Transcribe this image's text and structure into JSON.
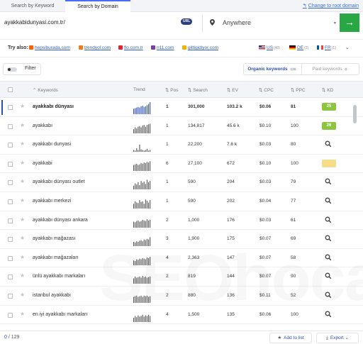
{
  "tabs": {
    "search_by_keyword": "Search by Keyword",
    "search_by_domain": "Search by Domain",
    "change_link": "Change to root domain"
  },
  "search": {
    "domain_value": "ayakkabidunyasi.com.tr/",
    "url_badge": "URL",
    "location_value": "Anywhere",
    "go_label": "→"
  },
  "try_also": {
    "label": "Try also:",
    "sites": [
      {
        "name": "hepsiburada.com",
        "color": "#ff6000"
      },
      {
        "name": "trendyol.com",
        "color": "#f27a1a"
      },
      {
        "name": "flo.com.tr",
        "color": "#e3262d"
      },
      {
        "name": "n11.com",
        "color": "#7b3fa0"
      },
      {
        "name": "gittigidiyor.com",
        "color": "#f2b400"
      }
    ],
    "countries": [
      {
        "code": "US",
        "count": "(40)"
      },
      {
        "code": "DE",
        "count": "(2)"
      },
      {
        "code": "FR",
        "count": "(1)"
      }
    ]
  },
  "filter": {
    "label": "Filter",
    "organic_label": "Organic keywords",
    "organic_count": "129",
    "paid_label": "Paid keywords",
    "paid_count": "0"
  },
  "table": {
    "headers": {
      "keywords": "Keywords",
      "trend": "Trend",
      "pos": "Pos",
      "search": "Search",
      "ev": "EV",
      "cpc": "CPC",
      "ppc": "PPC",
      "kd": "KD"
    },
    "rows": [
      {
        "keyword": "ayakkabı dünyası",
        "pos": "1",
        "search": "301,000",
        "ev": "103.2 k",
        "cpc": "$0.06",
        "ppc": "81",
        "kd": "25",
        "kd_color": "#8cc63f",
        "bold": true,
        "trend": [
          0.45,
          0.5,
          0.55,
          0.6,
          0.55,
          0.65,
          0.7,
          0.6,
          0.65,
          0.75,
          0.85,
          1.0
        ]
      },
      {
        "keyword": "ayakkabı",
        "pos": "1",
        "search": "134,817",
        "ev": "45.6 k",
        "cpc": "$0.10",
        "ppc": "100",
        "kd": "26",
        "kd_color": "#8cc63f",
        "trend": [
          0.35,
          0.5,
          0.4,
          0.55,
          0.6,
          0.5,
          0.65,
          0.7,
          0.55,
          0.7,
          0.75,
          0.8
        ]
      },
      {
        "keyword": "ayakkabı dunyasi",
        "pos": "1",
        "search": "22,200",
        "ev": "7.6 k",
        "cpc": "$0.03",
        "ppc": "80",
        "kd": "",
        "trend": [
          0.15,
          0.1,
          0.3,
          0.15,
          0.6,
          0.2,
          0.15,
          0.1,
          0.15,
          0.25,
          0.1,
          0.15
        ]
      },
      {
        "keyword": "ayakkabi",
        "pos": "6",
        "search": "27,100",
        "ev": "672",
        "cpc": "$0.10",
        "ppc": "100",
        "kd": " ",
        "kd_color": "#f7dc8a",
        "trend": [
          0.5,
          0.55,
          0.6,
          0.5,
          0.55,
          0.65,
          0.6,
          0.7,
          0.65,
          0.75,
          0.7,
          0.8
        ]
      },
      {
        "keyword": "ayakkabı dünyası outlet",
        "pos": "1",
        "search": "590",
        "ev": "204",
        "cpc": "$0.03",
        "ppc": "79",
        "kd": "",
        "trend": [
          0.3,
          0.5,
          0.4,
          0.6,
          0.35,
          0.7,
          0.55,
          0.65,
          0.45,
          0.8,
          0.6,
          0.7
        ]
      },
      {
        "keyword": "ayakkabı merkezi",
        "pos": "1",
        "search": "590",
        "ev": "202",
        "cpc": "$0.04",
        "ppc": "77",
        "kd": "",
        "trend": [
          0.4,
          0.6,
          0.5,
          0.45,
          0.7,
          0.55,
          0.6,
          0.4,
          0.75,
          0.65,
          0.5,
          0.7
        ]
      },
      {
        "keyword": "ayakkabı dünyası ankara",
        "pos": "2",
        "search": "1,000",
        "ev": "176",
        "cpc": "$0.03",
        "ppc": "61",
        "kd": "",
        "trend": [
          0.5,
          0.45,
          0.55,
          0.6,
          0.5,
          0.55,
          0.65,
          0.6,
          0.55,
          0.7,
          0.6,
          0.65
        ]
      },
      {
        "keyword": "ayakkabı mağazası",
        "pos": "3",
        "search": "1,900",
        "ev": "175",
        "cpc": "$0.07",
        "ppc": "69",
        "kd": "",
        "trend": [
          0.35,
          0.3,
          0.4,
          0.35,
          0.45,
          0.5,
          0.4,
          0.55,
          0.5,
          0.6,
          0.55,
          0.75
        ]
      },
      {
        "keyword": "ayakkabı mağazaları",
        "pos": "4",
        "search": "2,363",
        "ev": "147",
        "cpc": "$0.07",
        "ppc": "58",
        "kd": "",
        "trend": [
          0.4,
          0.35,
          0.5,
          0.45,
          0.55,
          0.5,
          0.6,
          0.55,
          0.5,
          0.65,
          0.6,
          0.7
        ]
      },
      {
        "keyword": "ünlü ayakkabı markaları",
        "pos": "2",
        "search": "819",
        "ev": "144",
        "cpc": "$0.07",
        "ppc": "90",
        "kd": "",
        "trend": [
          0.45,
          0.6,
          0.5,
          0.55,
          0.6,
          0.5,
          0.65,
          0.55,
          0.6,
          0.5,
          0.55,
          0.6
        ]
      },
      {
        "keyword": "istanbul ayakkabı",
        "pos": "2",
        "search": "880",
        "ev": "136",
        "cpc": "$0.11",
        "ppc": "52",
        "kd": "",
        "trend": [
          0.5,
          0.55,
          0.6,
          0.5,
          0.55,
          0.6,
          0.5,
          0.6,
          0.55,
          0.6,
          0.5,
          0.55
        ]
      },
      {
        "keyword": "en iyi ayakkabı markaları",
        "pos": "4",
        "search": "1,500",
        "ev": "135",
        "cpc": "$0.06",
        "ppc": "100",
        "kd": "",
        "trend": [
          0.35,
          0.5,
          0.4,
          0.55,
          0.45,
          0.5,
          0.6,
          0.45,
          0.55,
          0.5,
          0.6,
          0.5
        ]
      }
    ]
  },
  "footer": {
    "selected": "0",
    "total": "/ 129",
    "add_to_list": "Add to list",
    "export": "Export"
  },
  "colors": {
    "accent": "#2d4fb5",
    "go_button": "#29a744",
    "link": "#3a6fd8"
  }
}
